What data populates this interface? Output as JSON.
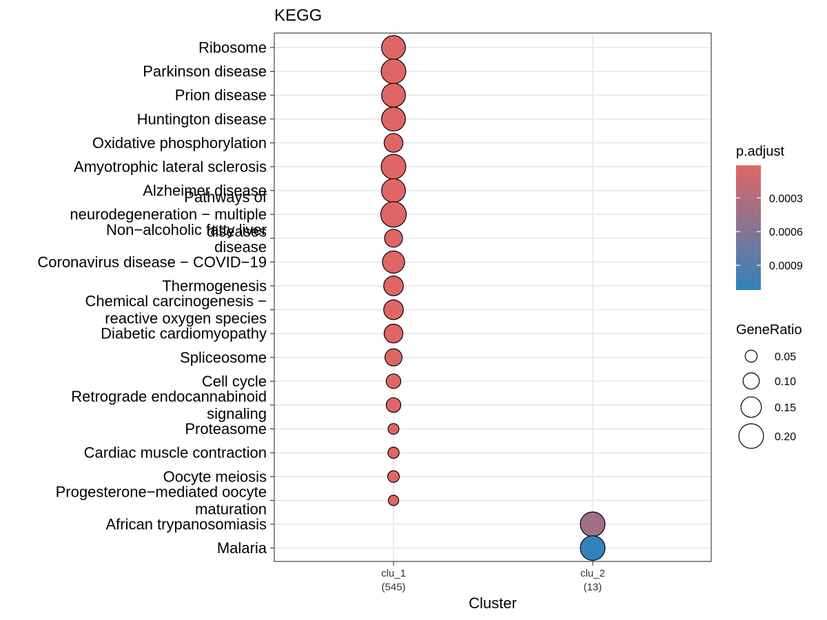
{
  "chart_data": {
    "type": "scatter",
    "title": "KEGG",
    "xlabel": "Cluster",
    "ylabel": "",
    "grid": true,
    "x_categories": [
      {
        "line1": "clu_1",
        "line2": "(545)"
      },
      {
        "line1": "clu_2",
        "line2": "(13)"
      }
    ],
    "y_categories": [
      [
        "Ribosome"
      ],
      [
        "Parkinson disease"
      ],
      [
        "Prion disease"
      ],
      [
        "Huntington disease"
      ],
      [
        "Oxidative phosphorylation"
      ],
      [
        "Amyotrophic lateral sclerosis"
      ],
      [
        "Alzheimer disease"
      ],
      [
        "Pathways of",
        "neurodegeneration − multiple",
        "diseases"
      ],
      [
        "Non−alcoholic fatty liver",
        "disease"
      ],
      [
        "Coronavirus disease − COVID−19"
      ],
      [
        "Thermogenesis"
      ],
      [
        "Chemical carcinogenesis −",
        "reactive oxygen species"
      ],
      [
        "Diabetic cardiomyopathy"
      ],
      [
        "Spliceosome"
      ],
      [
        "Cell cycle"
      ],
      [
        "Retrograde endocannabinoid",
        "signaling"
      ],
      [
        "Proteasome"
      ],
      [
        "Cardiac muscle contraction"
      ],
      [
        "Oocyte meiosis"
      ],
      [
        "Progesterone−mediated oocyte",
        "maturation"
      ],
      [
        "African trypanosomiasis"
      ],
      [
        "Malaria"
      ]
    ],
    "points": [
      {
        "cluster": "clu_1",
        "term": "Ribosome",
        "gene_ratio": 0.19,
        "p_adjust": 1e-05
      },
      {
        "cluster": "clu_1",
        "term": "Parkinson disease",
        "gene_ratio": 0.2,
        "p_adjust": 1e-05
      },
      {
        "cluster": "clu_1",
        "term": "Prion disease",
        "gene_ratio": 0.19,
        "p_adjust": 1e-05
      },
      {
        "cluster": "clu_1",
        "term": "Huntington disease",
        "gene_ratio": 0.19,
        "p_adjust": 1e-05
      },
      {
        "cluster": "clu_1",
        "term": "Oxidative phosphorylation",
        "gene_ratio": 0.13,
        "p_adjust": 1e-05
      },
      {
        "cluster": "clu_1",
        "term": "Amyotrophic lateral sclerosis",
        "gene_ratio": 0.2,
        "p_adjust": 1e-05
      },
      {
        "cluster": "clu_1",
        "term": "Alzheimer disease",
        "gene_ratio": 0.19,
        "p_adjust": 1e-05
      },
      {
        "cluster": "clu_1",
        "term": "Pathways of neurodegeneration - multiple diseases",
        "gene_ratio": 0.21,
        "p_adjust": 1e-05
      },
      {
        "cluster": "clu_1",
        "term": "Non-alcoholic fatty liver disease",
        "gene_ratio": 0.12,
        "p_adjust": 1e-05
      },
      {
        "cluster": "clu_1",
        "term": "Coronavirus disease - COVID-19",
        "gene_ratio": 0.17,
        "p_adjust": 1e-05
      },
      {
        "cluster": "clu_1",
        "term": "Thermogenesis",
        "gene_ratio": 0.14,
        "p_adjust": 1e-05
      },
      {
        "cluster": "clu_1",
        "term": "Chemical carcinogenesis - reactive oxygen species",
        "gene_ratio": 0.14,
        "p_adjust": 1e-05
      },
      {
        "cluster": "clu_1",
        "term": "Diabetic cardiomyopathy",
        "gene_ratio": 0.13,
        "p_adjust": 1e-05
      },
      {
        "cluster": "clu_1",
        "term": "Spliceosome",
        "gene_ratio": 0.11,
        "p_adjust": 1e-05
      },
      {
        "cluster": "clu_1",
        "term": "Cell cycle",
        "gene_ratio": 0.08,
        "p_adjust": 1e-05
      },
      {
        "cluster": "clu_1",
        "term": "Retrograde endocannabinoid signaling",
        "gene_ratio": 0.08,
        "p_adjust": 1e-05
      },
      {
        "cluster": "clu_1",
        "term": "Proteasome",
        "gene_ratio": 0.035,
        "p_adjust": 1e-05
      },
      {
        "cluster": "clu_1",
        "term": "Cardiac muscle contraction",
        "gene_ratio": 0.04,
        "p_adjust": 1e-05
      },
      {
        "cluster": "clu_1",
        "term": "Oocyte meiosis",
        "gene_ratio": 0.045,
        "p_adjust": 1e-05
      },
      {
        "cluster": "clu_1",
        "term": "Progesterone-mediated oocyte maturation",
        "gene_ratio": 0.03,
        "p_adjust": 1e-05
      },
      {
        "cluster": "clu_2",
        "term": "African trypanosomiasis",
        "gene_ratio": 0.2,
        "p_adjust": 0.00042
      },
      {
        "cluster": "clu_2",
        "term": "Malaria",
        "gene_ratio": 0.2,
        "p_adjust": 0.00112
      }
    ],
    "color_legend": {
      "title": "p.adjust",
      "ticks": [
        "0.0003",
        "0.0006",
        "0.0009"
      ],
      "tick_values": [
        0.0003,
        0.0006,
        0.0009
      ],
      "range": [
        1e-05,
        0.00112
      ],
      "low_color": "#e06666",
      "high_color": "#3182bd"
    },
    "size_legend": {
      "title": "GeneRatio",
      "labels": [
        "0.05",
        "0.10",
        "0.15",
        "0.20"
      ],
      "values": [
        0.05,
        0.1,
        0.15,
        0.2
      ],
      "range": [
        0.03,
        0.21
      ]
    },
    "legend_position": "right"
  }
}
